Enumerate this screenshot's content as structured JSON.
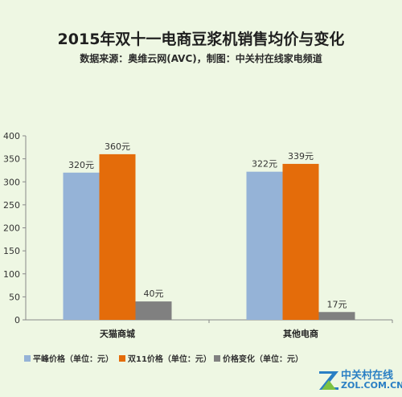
{
  "chart_data": {
    "type": "bar",
    "title": "2015年双十一电商豆浆机销售均价与变化",
    "subtitle": "数据来源：奥维云网(AVC)，制图：中关村在线家电频道",
    "categories": [
      "天猫商城",
      "其他电商"
    ],
    "series": [
      {
        "name": "平峰价格（单位：元）",
        "values": [
          320,
          322
        ],
        "labels": [
          "320元",
          "322元"
        ],
        "color": "#95b3d7"
      },
      {
        "name": "双11价格（单位：元）",
        "values": [
          360,
          339
        ],
        "labels": [
          "360元",
          "339元"
        ],
        "color": "#e46c0a"
      },
      {
        "name": "价格变化（单位：元）",
        "values": [
          40,
          17
        ],
        "labels": [
          "40元",
          "17元"
        ],
        "color": "#808080"
      }
    ],
    "ylim": [
      0,
      400
    ],
    "yticks": [
      0,
      50,
      100,
      150,
      200,
      250,
      300,
      350,
      400
    ],
    "grid": false,
    "legend": "bottom-left"
  },
  "logo": {
    "name": "中关村在线",
    "domain": "ZOL.COM.CN"
  }
}
